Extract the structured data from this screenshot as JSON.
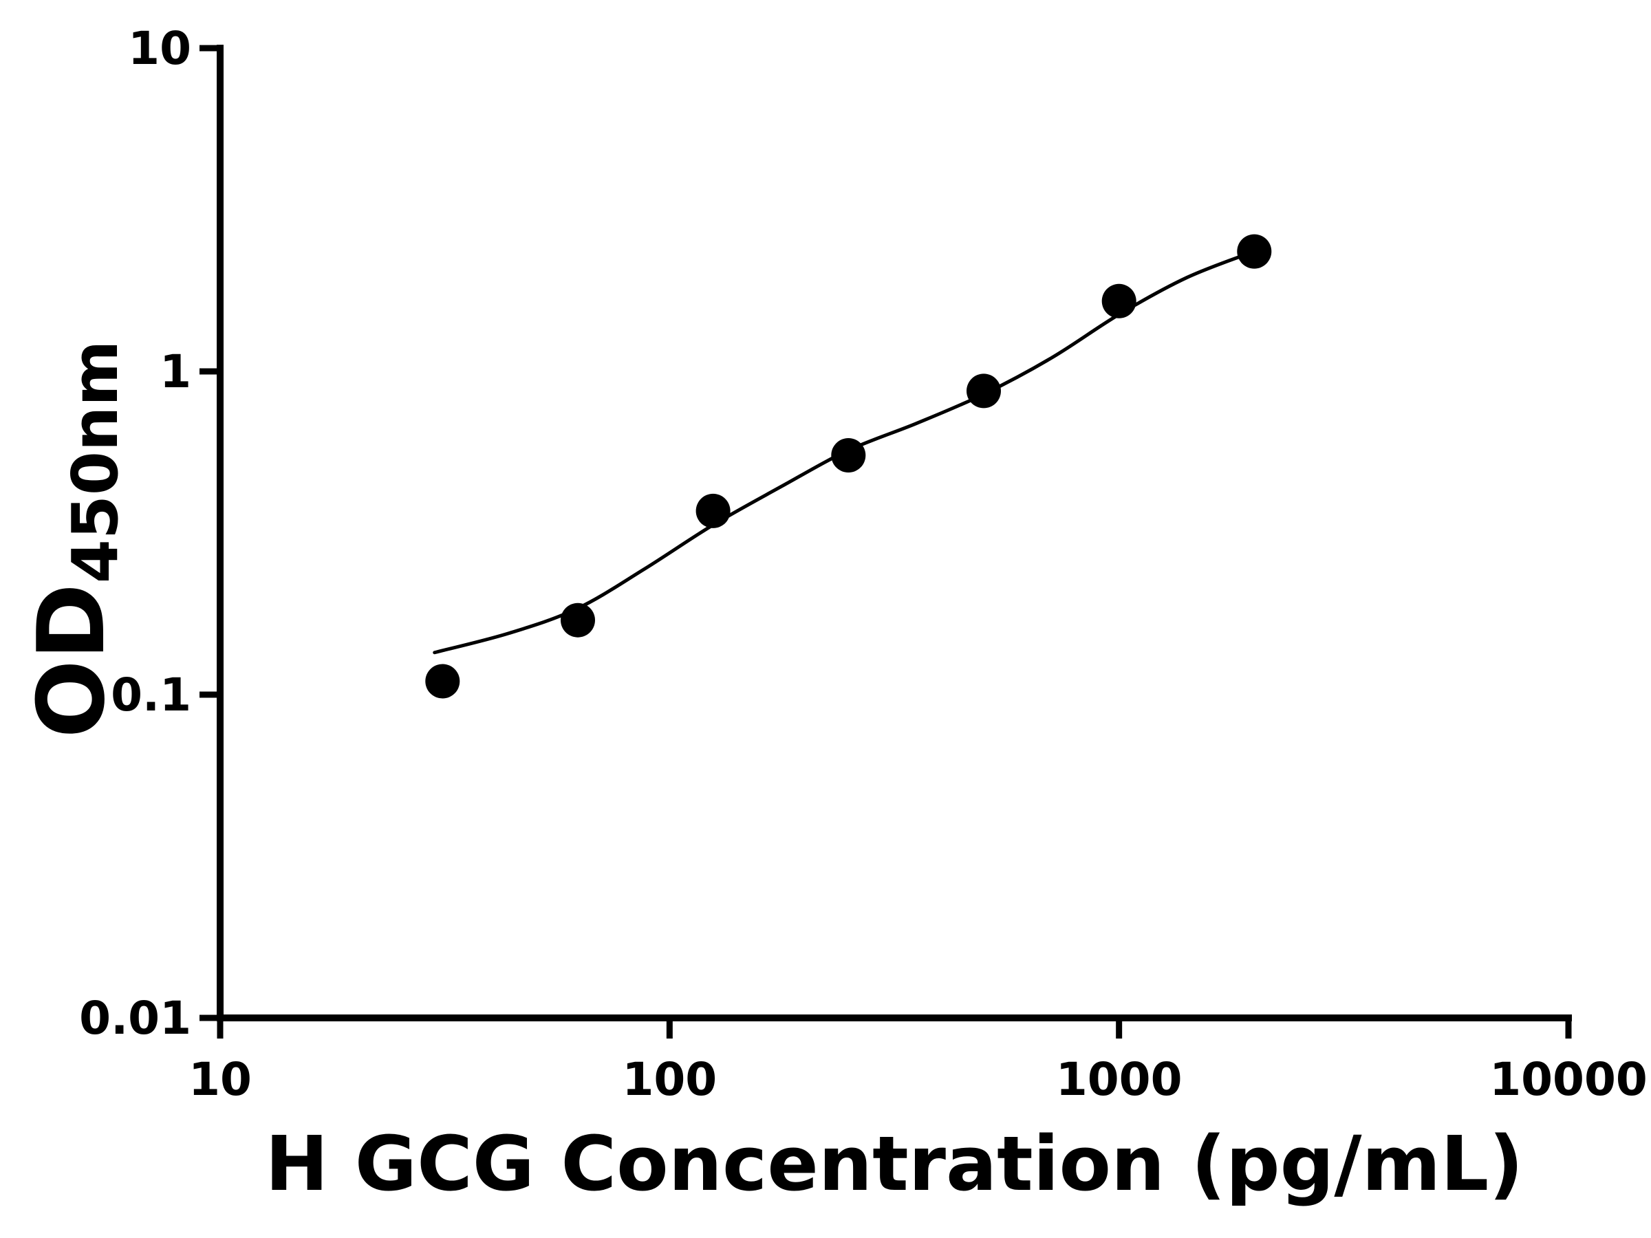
{
  "page": {
    "background": "#ffffff"
  },
  "chart_data": {
    "type": "scatter",
    "title": "",
    "xlabel": "H GCG Concentration (pg/mL)",
    "ylabel": "OD450nm",
    "ylabel_main": "OD",
    "ylabel_sub": "450nm",
    "x_scale": "log",
    "y_scale": "log",
    "xlim": [
      10,
      10000
    ],
    "ylim": [
      0.01,
      10
    ],
    "grid": false,
    "legend": false,
    "axis_color": "#000000",
    "marker_color": "#000000",
    "curve_color": "#000000",
    "x_ticks": [
      {
        "value": 10,
        "label": "10"
      },
      {
        "value": 100,
        "label": "100"
      },
      {
        "value": 1000,
        "label": "1000"
      },
      {
        "value": 10000,
        "label": "10000"
      }
    ],
    "y_ticks": [
      {
        "value": 0.01,
        "label": "0.01"
      },
      {
        "value": 0.1,
        "label": "0.1"
      },
      {
        "value": 1,
        "label": "1"
      },
      {
        "value": 10,
        "label": "10"
      }
    ],
    "series": [
      {
        "name": "standard-points",
        "kind": "scatter",
        "marker": "circle",
        "points": [
          {
            "x": 31.25,
            "y": 0.11
          },
          {
            "x": 62.5,
            "y": 0.17
          },
          {
            "x": 125,
            "y": 0.37
          },
          {
            "x": 250,
            "y": 0.55
          },
          {
            "x": 500,
            "y": 0.87
          },
          {
            "x": 1000,
            "y": 1.65
          },
          {
            "x": 2000,
            "y": 2.35
          }
        ]
      },
      {
        "name": "fit-curve",
        "kind": "line",
        "points": [
          {
            "x": 30,
            "y": 0.135
          },
          {
            "x": 44,
            "y": 0.155
          },
          {
            "x": 62.5,
            "y": 0.185
          },
          {
            "x": 88,
            "y": 0.245
          },
          {
            "x": 125,
            "y": 0.335
          },
          {
            "x": 177,
            "y": 0.44
          },
          {
            "x": 250,
            "y": 0.57
          },
          {
            "x": 354,
            "y": 0.69
          },
          {
            "x": 500,
            "y": 0.85
          },
          {
            "x": 707,
            "y": 1.1
          },
          {
            "x": 1000,
            "y": 1.5
          },
          {
            "x": 1414,
            "y": 1.95
          },
          {
            "x": 2000,
            "y": 2.35
          }
        ]
      }
    ]
  }
}
